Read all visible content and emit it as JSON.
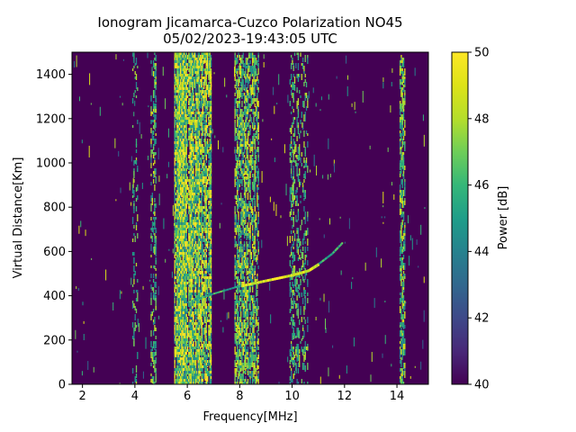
{
  "chart_data": {
    "type": "heatmap",
    "title": "Ionogram Jicamarca-Cuzco Polarization NO45",
    "subtitle": "05/02/2023-19:43:05 UTC",
    "xlabel": "Frequency[MHz]",
    "ylabel": "Virtual Distance[Km]",
    "xlim": [
      1.6,
      15.2
    ],
    "ylim": [
      0,
      1500
    ],
    "x_ticks": [
      2,
      4,
      6,
      8,
      10,
      12,
      14
    ],
    "y_ticks": [
      0,
      200,
      400,
      600,
      800,
      1000,
      1200,
      1400
    ],
    "colorbar": {
      "label": "Power [dB]",
      "range": [
        40,
        50
      ],
      "ticks": [
        40,
        42,
        44,
        46,
        48,
        50
      ],
      "colormap": "viridis"
    },
    "background_color": "#440154",
    "high_color": "#fde725",
    "echo_trace": {
      "description_points": [
        {
          "x": 6.0,
          "y": 370
        },
        {
          "x": 7.0,
          "y": 410
        },
        {
          "x": 8.0,
          "y": 445
        },
        {
          "x": 9.0,
          "y": 470
        },
        {
          "x": 10.0,
          "y": 495
        },
        {
          "x": 10.6,
          "y": 515
        },
        {
          "x": 11.0,
          "y": 545
        },
        {
          "x": 11.5,
          "y": 590
        },
        {
          "x": 11.9,
          "y": 640
        }
      ]
    },
    "bands": [
      {
        "x0": 5.5,
        "x1": 6.9,
        "intensity": 0.92
      },
      {
        "x0": 7.8,
        "x1": 8.7,
        "intensity": 0.55
      },
      {
        "x0": 9.9,
        "x1": 10.6,
        "intensity": 0.25
      },
      {
        "x0": 14.1,
        "x1": 14.3,
        "intensity": 0.5
      },
      {
        "x0": 4.6,
        "x1": 4.8,
        "intensity": 0.35
      },
      {
        "x0": 3.9,
        "x1": 4.1,
        "intensity": 0.15
      }
    ]
  }
}
